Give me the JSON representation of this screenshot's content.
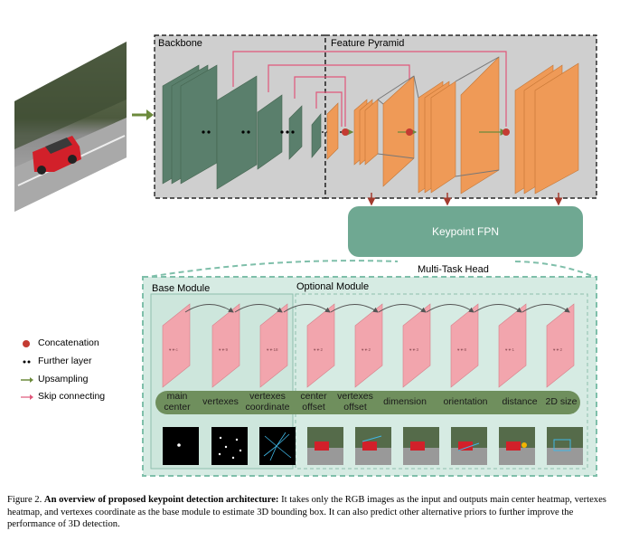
{
  "backbone_label": "Backbone",
  "feature_pyramid_label": "Feature Pyramid",
  "keypoint_fpn_label": "Keypoint FPN",
  "multitask_head_label": "Multi-Task Head",
  "base_module_label": "Base Module",
  "optional_module_label": "Optional Module",
  "legend": [
    {
      "icon": "concatenation-icon",
      "label": "Concatenation"
    },
    {
      "icon": "further-layer-icon",
      "label": "Further layer"
    },
    {
      "icon": "upsampling-arrow-icon",
      "label": "Upsampling"
    },
    {
      "icon": "skip-connecting-arrow-icon",
      "label": "Skip connecting"
    }
  ],
  "head_outputs": [
    {
      "line1": "main",
      "line2": "center"
    },
    {
      "line1": "vertexes",
      "line2": ""
    },
    {
      "line1": "vertexes",
      "line2": "coordinate"
    },
    {
      "line1": "center",
      "line2": "offset"
    },
    {
      "line1": "vertexes",
      "line2": "offset"
    },
    {
      "line1": "dimension",
      "line2": ""
    },
    {
      "line1": "orientation",
      "line2": ""
    },
    {
      "line1": "distance",
      "line2": ""
    },
    {
      "line1": "2D size",
      "line2": ""
    }
  ],
  "caption": {
    "prefix": "Figure 2.",
    "bold": "An overview of proposed keypoint detection architecture:",
    "text": "It takes only the RGB images as the input and outputs main center heatmap, vertexes heatmap, and vertexes coordinate as the base module to estimate 3D bounding box. It can also predict other alternative priors to further improve the performance of 3D detection."
  },
  "colors": {
    "backbone_layer": "#5a7f6c",
    "pyramid_layer": "#ef9a57",
    "skip_arrow": "#e0577a",
    "upsample_arrow": "#6c8a3c",
    "fpn_box": "#6fa892",
    "head_bg": "#d6ebe3",
    "head_border": "#7fbfaa",
    "heatmap_plane": "#f2a5ad",
    "label_strip": "#6f8f5d",
    "panel_bg": "#cfcfcf"
  }
}
